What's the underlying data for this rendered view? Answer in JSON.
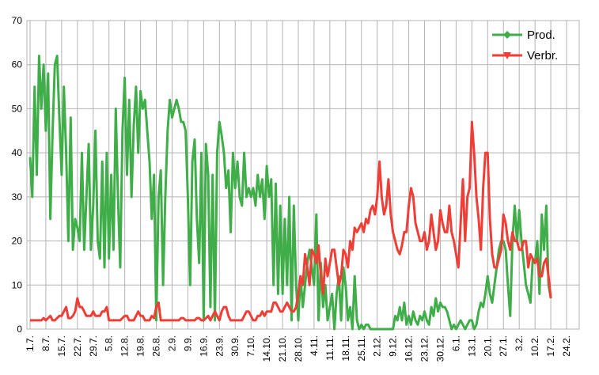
{
  "chart_data": {
    "type": "line",
    "categories": [
      "1.7.",
      null,
      null,
      null,
      null,
      null,
      null,
      "8.7.",
      null,
      null,
      null,
      null,
      null,
      null,
      "15.7.",
      null,
      null,
      null,
      null,
      null,
      null,
      "22.7.",
      null,
      null,
      null,
      null,
      null,
      null,
      "29.7.",
      null,
      null,
      null,
      null,
      null,
      null,
      "5.8.",
      null,
      null,
      null,
      null,
      null,
      null,
      "12.8.",
      null,
      null,
      null,
      null,
      null,
      null,
      "19.8.",
      null,
      null,
      null,
      null,
      null,
      null,
      "26.8.",
      null,
      null,
      null,
      null,
      null,
      null,
      "2.9.",
      null,
      null,
      null,
      null,
      null,
      null,
      "9.9.",
      null,
      null,
      null,
      null,
      null,
      null,
      "16.9.",
      null,
      null,
      null,
      null,
      null,
      null,
      "23.9.",
      null,
      null,
      null,
      null,
      null,
      null,
      "30.9.",
      null,
      null,
      null,
      null,
      null,
      null,
      "7.10.",
      null,
      null,
      null,
      null,
      null,
      null,
      "14.10.",
      null,
      null,
      null,
      null,
      null,
      null,
      "21.10.",
      null,
      null,
      null,
      null,
      null,
      null,
      "28.10.",
      null,
      null,
      null,
      null,
      null,
      null,
      "4.11.",
      null,
      null,
      null,
      null,
      null,
      null,
      "11.11.",
      null,
      null,
      null,
      null,
      null,
      null,
      "18.11.",
      null,
      null,
      null,
      null,
      null,
      null,
      "25.11.",
      null,
      null,
      null,
      null,
      null,
      null,
      "2.12.",
      null,
      null,
      null,
      null,
      null,
      null,
      "9.12.",
      null,
      null,
      null,
      null,
      null,
      null,
      "16.12.",
      null,
      null,
      null,
      null,
      null,
      null,
      "23.12.",
      null,
      null,
      null,
      null,
      null,
      null,
      "30.12.",
      null,
      null,
      null,
      null,
      null,
      null,
      "6.1.",
      null,
      null,
      null,
      null,
      null,
      null,
      "13.1.",
      null,
      null,
      null,
      null,
      null,
      null,
      "20.1.",
      null,
      null,
      null,
      null,
      null,
      null,
      "27.1.",
      null,
      null,
      null,
      null,
      null,
      null,
      "3.2.",
      null,
      null,
      null,
      null,
      null,
      null,
      "10.2.",
      null,
      null,
      null,
      null,
      null,
      null,
      "17.2.",
      null,
      null,
      null,
      null,
      null,
      null,
      "24.2."
    ],
    "series": [
      {
        "name": "Prod.",
        "color": "#3fae49",
        "marker": "diamond",
        "values": [
          39,
          30,
          55,
          35,
          62,
          50,
          60,
          45,
          58,
          25,
          45,
          60,
          62,
          48,
          35,
          55,
          40,
          20,
          48,
          18,
          25,
          23,
          20,
          40,
          18,
          30,
          42,
          18,
          28,
          45,
          20,
          16,
          38,
          14,
          40,
          16,
          35,
          18,
          50,
          30,
          14,
          45,
          57,
          35,
          52,
          30,
          46,
          55,
          40,
          54,
          50,
          52,
          45,
          38,
          25,
          35,
          2,
          30,
          36,
          10,
          30,
          45,
          52,
          48,
          50,
          52,
          50,
          47,
          47,
          45,
          30,
          10,
          38,
          43,
          25,
          15,
          40,
          2,
          42,
          35,
          5,
          35,
          2,
          40,
          47,
          44,
          40,
          32,
          36,
          22,
          40,
          32,
          38,
          30,
          28,
          40,
          30,
          32,
          30,
          32,
          28,
          35,
          30,
          34,
          25,
          37,
          30,
          34,
          10,
          33,
          8,
          28,
          8,
          25,
          10,
          30,
          2,
          28,
          10,
          2,
          12,
          5,
          10,
          15,
          18,
          14,
          10,
          26,
          2,
          15,
          5,
          10,
          2,
          5,
          8,
          0,
          8,
          12,
          2,
          14,
          10,
          2,
          5,
          0,
          12,
          2,
          0,
          1,
          0,
          1,
          1,
          0,
          0,
          0,
          0,
          0,
          0,
          0,
          0,
          0,
          0,
          0,
          3,
          2,
          5,
          2,
          6,
          1,
          3,
          1,
          4,
          2,
          1,
          3,
          2,
          4,
          2,
          1,
          5,
          3,
          7,
          4,
          6,
          5,
          5,
          4,
          2,
          0,
          1,
          0,
          1,
          2,
          1,
          0,
          1,
          2,
          2,
          0,
          1,
          4,
          6,
          5,
          8,
          12,
          8,
          6,
          10,
          14,
          18,
          20,
          20,
          18,
          10,
          3,
          20,
          28,
          20,
          27,
          20,
          15,
          10,
          8,
          6,
          16,
          15,
          20,
          8,
          26,
          18,
          28,
          10,
          7,
          null,
          null,
          null,
          null,
          null,
          null,
          null
        ]
      },
      {
        "name": "Verbr.",
        "color": "#ee3e36",
        "marker": "triangle-down",
        "values": [
          2,
          2,
          2,
          2,
          2,
          2,
          2.5,
          2,
          2.5,
          3,
          2,
          2,
          2.5,
          3,
          3,
          4,
          5,
          2.5,
          2.5,
          3,
          4,
          7,
          5,
          5,
          4,
          3,
          3,
          3,
          4,
          3,
          3,
          3,
          4,
          4,
          5,
          2,
          2,
          2,
          2,
          2,
          2,
          2.5,
          3,
          3,
          2,
          2,
          2,
          3,
          4,
          3,
          3,
          2,
          2,
          2,
          3,
          2.5,
          5,
          6,
          2,
          2,
          2,
          2,
          2,
          2,
          2,
          2,
          2,
          2.5,
          2.5,
          2,
          2,
          2,
          2,
          2,
          2.5,
          2.5,
          2,
          2,
          2.5,
          3,
          2,
          3,
          4,
          3,
          2,
          4,
          5,
          5,
          3,
          2,
          2,
          2,
          2,
          2,
          2,
          3,
          4,
          4,
          3,
          2,
          2,
          3,
          3,
          4,
          3,
          4,
          4,
          4,
          6,
          6,
          5,
          4,
          4,
          5,
          6,
          5,
          4,
          4,
          5,
          8,
          12,
          10,
          17,
          14,
          10,
          18,
          17,
          15,
          19,
          12,
          8,
          16,
          12,
          15,
          18,
          18,
          14,
          10,
          12,
          18,
          17,
          14,
          20,
          18,
          23,
          22,
          23,
          24,
          22,
          25,
          24,
          27,
          28,
          26,
          30,
          38,
          30,
          26,
          28,
          34,
          26,
          22,
          20,
          18,
          17,
          19,
          22,
          22,
          28,
          32,
          30,
          24,
          22,
          20,
          20,
          22,
          18,
          20,
          26,
          22,
          18,
          20,
          27,
          24,
          22,
          22,
          28,
          22,
          20,
          17,
          14,
          24,
          34,
          20,
          30,
          32,
          47,
          40,
          30,
          25,
          18,
          32,
          40,
          40,
          25,
          17,
          14,
          14,
          16,
          18,
          26,
          24,
          20,
          18,
          22,
          20,
          20,
          18,
          18,
          20,
          20,
          14,
          17,
          16,
          15,
          16,
          12,
          12,
          15,
          16,
          12,
          7,
          null,
          null,
          null,
          null,
          null,
          null,
          null
        ]
      }
    ],
    "ylim": [
      0,
      70
    ],
    "yticks": [
      0,
      10,
      20,
      30,
      40,
      50,
      60,
      70
    ],
    "grid": true,
    "legend": "top-right"
  }
}
